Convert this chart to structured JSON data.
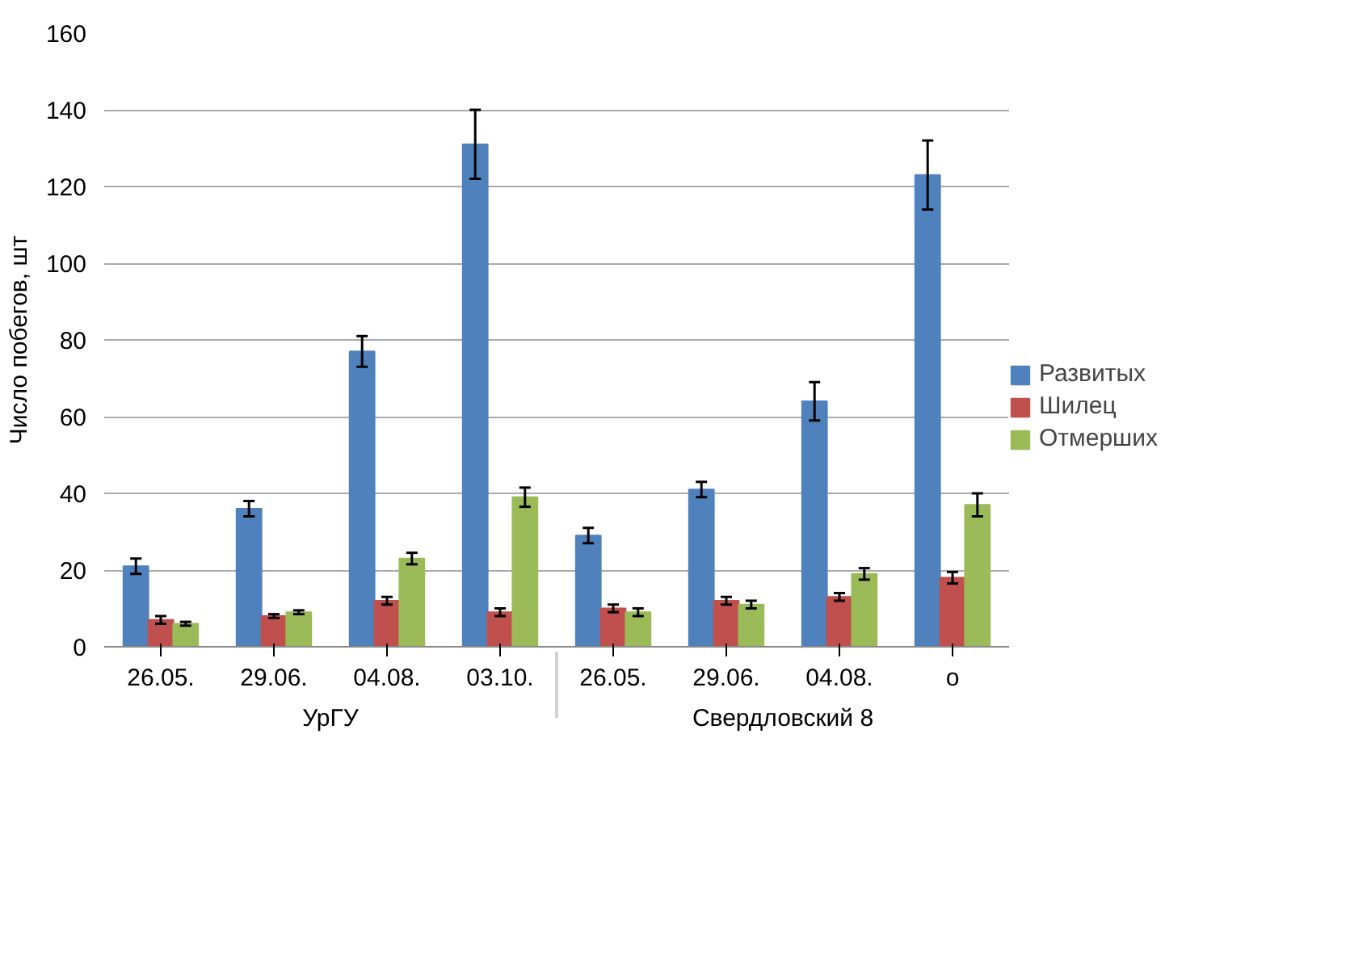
{
  "chart_data": {
    "type": "bar",
    "ylabel": "Число побегов, шт",
    "categories": [
      "26.05.",
      "29.06.",
      "04.08.",
      "03.10.",
      "26.05.",
      "29.06.",
      "04.08.",
      "о"
    ],
    "annotations": [
      "УрГУ",
      "Свердловский 8"
    ],
    "series": [
      {
        "name": "Развитых",
        "color": "#4f81bd",
        "values": [
          21,
          36,
          77,
          131,
          29,
          41,
          64,
          123
        ],
        "errors": [
          2,
          2,
          4,
          9,
          2,
          2,
          5,
          9
        ]
      },
      {
        "name": "Шилец",
        "color": "#c0504d",
        "values": [
          7,
          8,
          12,
          9,
          10,
          12,
          13,
          18
        ],
        "errors": [
          1,
          0.5,
          1,
          1,
          1,
          1,
          1,
          1.5
        ]
      },
      {
        "name": "Отмерших",
        "color": "#9bbb59",
        "values": [
          6,
          9,
          23,
          39,
          9,
          11,
          19,
          37
        ],
        "errors": [
          0.5,
          0.5,
          1.5,
          2.5,
          1,
          1,
          1.5,
          3
        ]
      }
    ],
    "ylim": [
      0,
      160
    ],
    "yticks": [
      0,
      20,
      40,
      60,
      80,
      100,
      120,
      140,
      160
    ],
    "grid": "y",
    "legend": "right"
  }
}
